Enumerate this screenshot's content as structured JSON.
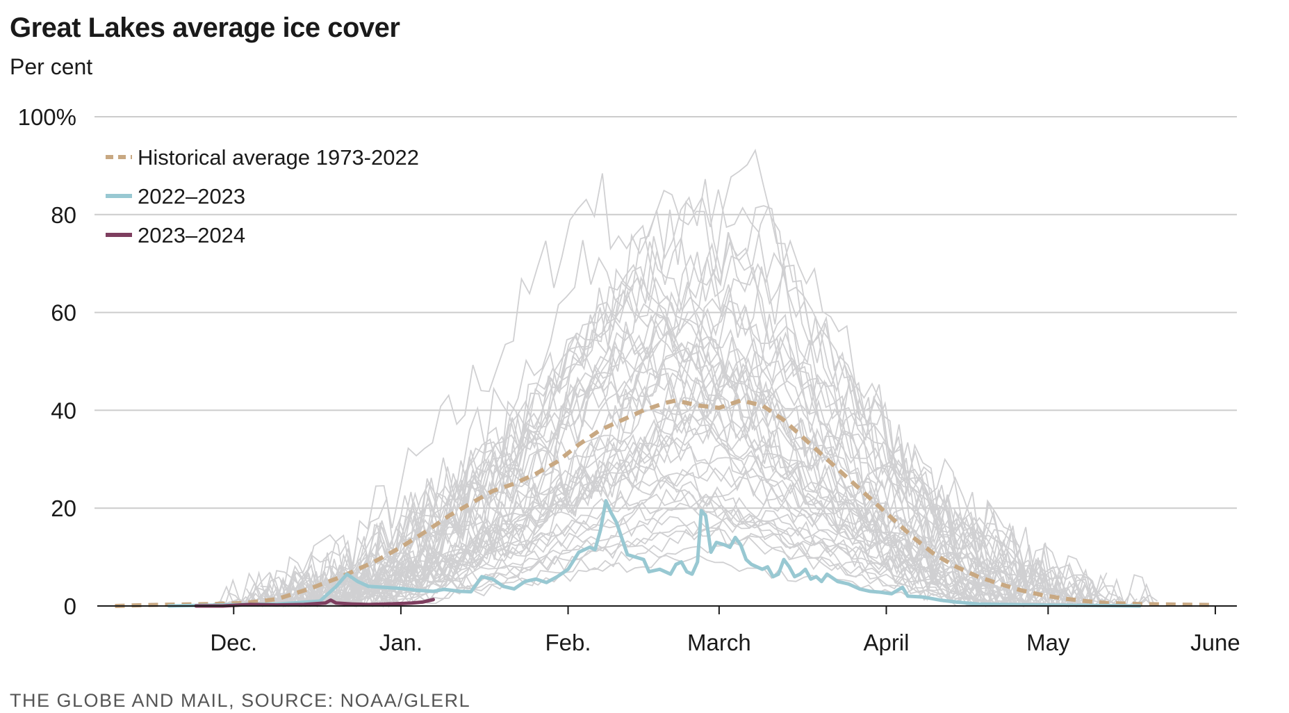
{
  "header": {
    "title": "Great Lakes average ice cover",
    "subtitle": "Per cent"
  },
  "footer": {
    "source": "THE GLOBE AND MAIL, SOURCE: NOAA/GLERL"
  },
  "chart_data": {
    "type": "line",
    "title": "Great Lakes average ice cover",
    "subtitle": "Per cent",
    "xlabel": "",
    "ylabel": "",
    "ylim": [
      0,
      100
    ],
    "xlim": [
      "Nov. 9",
      "June 7"
    ],
    "x_day_offset_ticks": [
      {
        "label": "Dec.",
        "day": 22
      },
      {
        "label": "Jan.",
        "day": 53
      },
      {
        "label": "Feb.",
        "day": 84
      },
      {
        "label": "March",
        "day": 112
      },
      {
        "label": "April",
        "day": 143
      },
      {
        "label": "May",
        "day": 173
      },
      {
        "label": "June",
        "day": 204
      }
    ],
    "y_ticks": [
      {
        "label": "0",
        "value": 0
      },
      {
        "label": "20",
        "value": 20
      },
      {
        "label": "40",
        "value": 40
      },
      {
        "label": "60",
        "value": 60
      },
      {
        "label": "80",
        "value": 80
      },
      {
        "label": "100%",
        "value": 100
      }
    ],
    "grid": true,
    "legend_position": "top-left",
    "legend": [
      {
        "label": "Historical average 1973-2022",
        "color": "#c8a882",
        "style": "dashed"
      },
      {
        "label": "2022–2023",
        "color": "#98c8d2",
        "style": "solid"
      },
      {
        "label": "2023–2024",
        "color": "#7e3e5f",
        "style": "solid"
      }
    ],
    "series": [
      {
        "name": "Historical average 1973-2022",
        "color": "#c8a882",
        "style": "dashed",
        "points": [
          [
            0,
            0
          ],
          [
            6,
            0.2
          ],
          [
            12,
            0.3
          ],
          [
            18,
            0.4
          ],
          [
            24,
            0.6
          ],
          [
            30,
            1.4
          ],
          [
            36,
            3.5
          ],
          [
            42,
            6
          ],
          [
            48,
            9
          ],
          [
            53,
            12
          ],
          [
            58,
            15.5
          ],
          [
            62,
            18.5
          ],
          [
            66,
            21
          ],
          [
            70,
            23.5
          ],
          [
            74,
            25
          ],
          [
            78,
            27
          ],
          [
            82,
            29.5
          ],
          [
            86,
            33
          ],
          [
            90,
            36
          ],
          [
            94,
            38
          ],
          [
            98,
            40
          ],
          [
            102,
            41.5
          ],
          [
            104,
            42
          ],
          [
            108,
            41
          ],
          [
            112,
            40.5
          ],
          [
            116,
            42
          ],
          [
            120,
            41
          ],
          [
            124,
            38
          ],
          [
            128,
            34
          ],
          [
            132,
            30
          ],
          [
            136,
            26
          ],
          [
            140,
            22
          ],
          [
            144,
            18
          ],
          [
            148,
            14
          ],
          [
            152,
            10.5
          ],
          [
            156,
            8
          ],
          [
            160,
            6
          ],
          [
            164,
            4.5
          ],
          [
            168,
            3.2
          ],
          [
            172,
            2.2
          ],
          [
            176,
            1.5
          ],
          [
            180,
            1.0
          ],
          [
            184,
            0.6
          ],
          [
            190,
            0.4
          ],
          [
            196,
            0.3
          ],
          [
            204,
            0.2
          ]
        ]
      },
      {
        "name": "2022–2023",
        "color": "#98c8d2",
        "style": "solid",
        "points": [
          [
            10,
            0
          ],
          [
            20,
            0.2
          ],
          [
            30,
            0.4
          ],
          [
            38,
            1.0
          ],
          [
            41,
            4
          ],
          [
            43,
            6.5
          ],
          [
            45,
            5
          ],
          [
            47,
            4
          ],
          [
            50,
            3.8
          ],
          [
            53,
            3.6
          ],
          [
            56,
            3.2
          ],
          [
            59,
            3
          ],
          [
            61,
            3.4
          ],
          [
            64,
            3
          ],
          [
            66,
            2.9
          ],
          [
            68,
            6
          ],
          [
            70,
            5.5
          ],
          [
            72,
            4
          ],
          [
            74,
            3.5
          ],
          [
            76,
            5
          ],
          [
            78,
            5.5
          ],
          [
            80,
            4.8
          ],
          [
            82,
            6
          ],
          [
            84,
            7.5
          ],
          [
            86,
            11
          ],
          [
            88,
            12
          ],
          [
            89,
            11.5
          ],
          [
            90,
            15.5
          ],
          [
            91,
            21.5
          ],
          [
            92,
            19
          ],
          [
            93,
            17
          ],
          [
            95,
            10.5
          ],
          [
            98,
            9.5
          ],
          [
            99,
            7
          ],
          [
            101,
            7.5
          ],
          [
            103,
            6.5
          ],
          [
            104,
            8.5
          ],
          [
            105,
            9
          ],
          [
            106,
            7
          ],
          [
            107,
            6.5
          ],
          [
            108,
            9
          ],
          [
            108.7,
            19.5
          ],
          [
            109.5,
            18.5
          ],
          [
            110.5,
            11
          ],
          [
            111.5,
            13
          ],
          [
            113,
            12.5
          ],
          [
            114,
            12
          ],
          [
            115,
            14
          ],
          [
            116,
            12.5
          ],
          [
            117,
            9.5
          ],
          [
            118,
            8.5
          ],
          [
            120,
            7.5
          ],
          [
            121,
            8
          ],
          [
            122,
            6
          ],
          [
            123,
            6.5
          ],
          [
            124,
            9.5
          ],
          [
            125,
            8
          ],
          [
            126,
            6
          ],
          [
            127,
            6.5
          ],
          [
            128,
            7.5
          ],
          [
            129,
            5.5
          ],
          [
            130,
            6
          ],
          [
            131,
            5
          ],
          [
            132,
            6.5
          ],
          [
            134,
            5
          ],
          [
            136,
            4.5
          ],
          [
            138,
            3.5
          ],
          [
            140,
            3
          ],
          [
            142,
            2.8
          ],
          [
            144,
            2.5
          ],
          [
            146,
            3.8
          ],
          [
            147,
            2
          ],
          [
            150,
            1.8
          ],
          [
            153,
            1.2
          ],
          [
            156,
            0.8
          ],
          [
            160,
            0.4
          ],
          [
            165,
            0.3
          ],
          [
            172,
            0.2
          ],
          [
            182,
            0.1
          ],
          [
            190,
            0
          ]
        ]
      },
      {
        "name": "2023–2024",
        "color": "#7e3e5f",
        "style": "solid",
        "points": [
          [
            15,
            0
          ],
          [
            20,
            0
          ],
          [
            25,
            0.3
          ],
          [
            30,
            0.2
          ],
          [
            35,
            0.3
          ],
          [
            39,
            0.6
          ],
          [
            40,
            1.2
          ],
          [
            41,
            0.6
          ],
          [
            44,
            0.4
          ],
          [
            47,
            0.3
          ],
          [
            50,
            0.4
          ],
          [
            53,
            0.5
          ],
          [
            55,
            0.6
          ],
          [
            57,
            0.8
          ],
          [
            59,
            1.3
          ]
        ]
      }
    ]
  },
  "colors": {
    "background": "#ffffff",
    "gridline": "#cccccc",
    "axis": "#1a1a1a",
    "historical_lines": "#d0d0d2",
    "average": "#c8a882",
    "season_2022_2023": "#98c8d2",
    "season_2023_2024": "#7e3e5f",
    "source_text": "#555555"
  }
}
